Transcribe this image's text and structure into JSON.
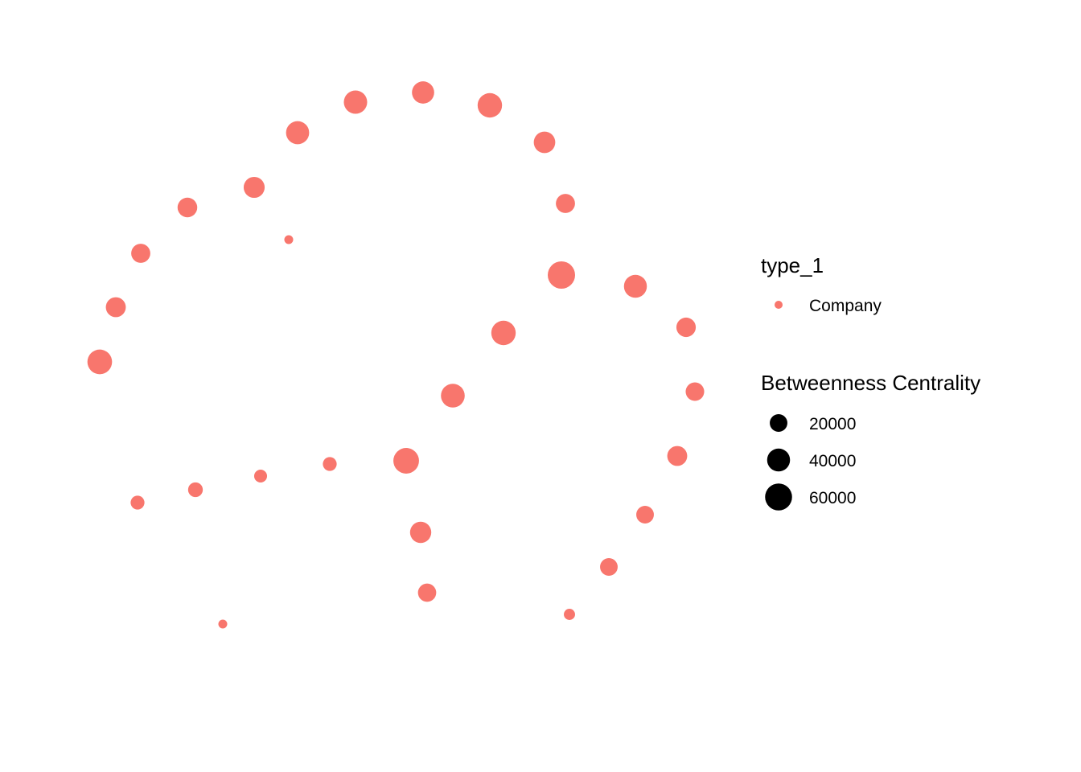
{
  "chart_data": {
    "type": "scatter",
    "description_visible": false,
    "axes_visible": false,
    "grid": false,
    "legend_position": "right",
    "node_color": "#F8766D",
    "legend_key_color": "#000000",
    "points": [
      {
        "betweenness": 42000
      },
      {
        "betweenness": 37000
      },
      {
        "betweenness": 47000
      },
      {
        "betweenness": 41000
      },
      {
        "betweenness": 34000
      },
      {
        "betweenness": 32000
      },
      {
        "betweenness": 27000
      },
      {
        "betweenness": 25000
      },
      {
        "betweenness": 25000
      },
      {
        "betweenness": 28000
      },
      {
        "betweenness": 2000
      },
      {
        "betweenness": 48000
      },
      {
        "betweenness": 62000
      },
      {
        "betweenness": 40000
      },
      {
        "betweenness": 26000
      },
      {
        "betweenness": 23000
      },
      {
        "betweenness": 47000
      },
      {
        "betweenness": 44000
      },
      {
        "betweenness": 53000
      },
      {
        "betweenness": 10000
      },
      {
        "betweenness": 8000
      },
      {
        "betweenness": 12000
      },
      {
        "betweenness": 10000
      },
      {
        "betweenness": 28000
      },
      {
        "betweenness": 20000
      },
      {
        "betweenness": 20000
      },
      {
        "betweenness": 33000
      },
      {
        "betweenness": 2000
      },
      {
        "betweenness": 22000
      },
      {
        "betweenness": 5000
      }
    ],
    "legend": {
      "color_title": "type_1",
      "color_items": [
        {
          "label": "Company",
          "color": "#F8766D"
        }
      ],
      "size_title": "Betweenness Centrality",
      "size_items": [
        {
          "label": "20000",
          "value": 20000
        },
        {
          "label": "40000",
          "value": 40000
        },
        {
          "label": "60000",
          "value": 60000
        }
      ]
    }
  }
}
